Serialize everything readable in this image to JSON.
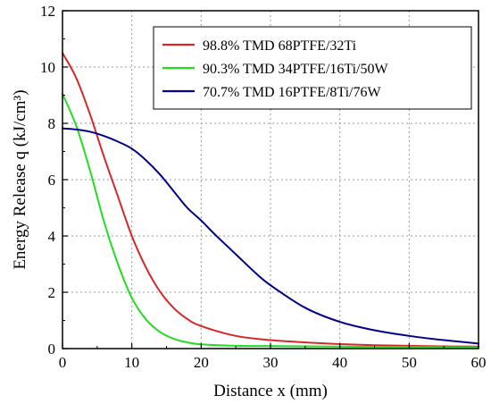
{
  "chart_data": {
    "type": "line",
    "xlabel": "Distance x (mm)",
    "ylabel": "Energy Release q (kJ/cm³)",
    "xlim": [
      0,
      60
    ],
    "ylim": [
      0,
      12
    ],
    "xticks": [
      "0",
      "10",
      "20",
      "30",
      "40",
      "50",
      "60"
    ],
    "yticks": [
      "0",
      "2",
      "4",
      "6",
      "8",
      "10",
      "12"
    ],
    "grid": true,
    "legend_position": "top-right",
    "series": [
      {
        "name": "98.8% TMD 68PTFE/32Ti",
        "color": "#d62728",
        "x": [
          0,
          2,
          4,
          6,
          8,
          10,
          12,
          14,
          16,
          18,
          20,
          25,
          30,
          35,
          40,
          45,
          50,
          55,
          60
        ],
        "y": [
          10.5,
          9.6,
          8.3,
          6.8,
          5.4,
          4.0,
          2.9,
          2.05,
          1.45,
          1.05,
          0.8,
          0.45,
          0.3,
          0.22,
          0.16,
          0.12,
          0.1,
          0.08,
          0.07
        ]
      },
      {
        "name": "90.3% TMD 34PTFE/16Ti/50W",
        "color": "#22dd22",
        "x": [
          0,
          2,
          4,
          6,
          8,
          10,
          12,
          14,
          16,
          18,
          20,
          25,
          30,
          35,
          40,
          45,
          50,
          55,
          60
        ],
        "y": [
          9.05,
          7.9,
          6.3,
          4.5,
          3.0,
          1.8,
          1.05,
          0.6,
          0.35,
          0.22,
          0.15,
          0.1,
          0.09,
          0.08,
          0.07,
          0.06,
          0.06,
          0.05,
          0.05
        ]
      },
      {
        "name": "70.7% TMD 16PTFE/8Ti/76W",
        "color": "#00008b",
        "x": [
          0,
          2,
          4,
          6,
          8,
          10,
          12,
          14,
          16,
          18,
          20,
          22,
          25,
          28,
          30,
          35,
          40,
          45,
          50,
          55,
          60
        ],
        "y": [
          7.82,
          7.78,
          7.7,
          7.55,
          7.35,
          7.1,
          6.7,
          6.2,
          5.6,
          5.0,
          4.55,
          4.05,
          3.35,
          2.65,
          2.25,
          1.45,
          0.95,
          0.65,
          0.45,
          0.3,
          0.18
        ]
      }
    ]
  }
}
